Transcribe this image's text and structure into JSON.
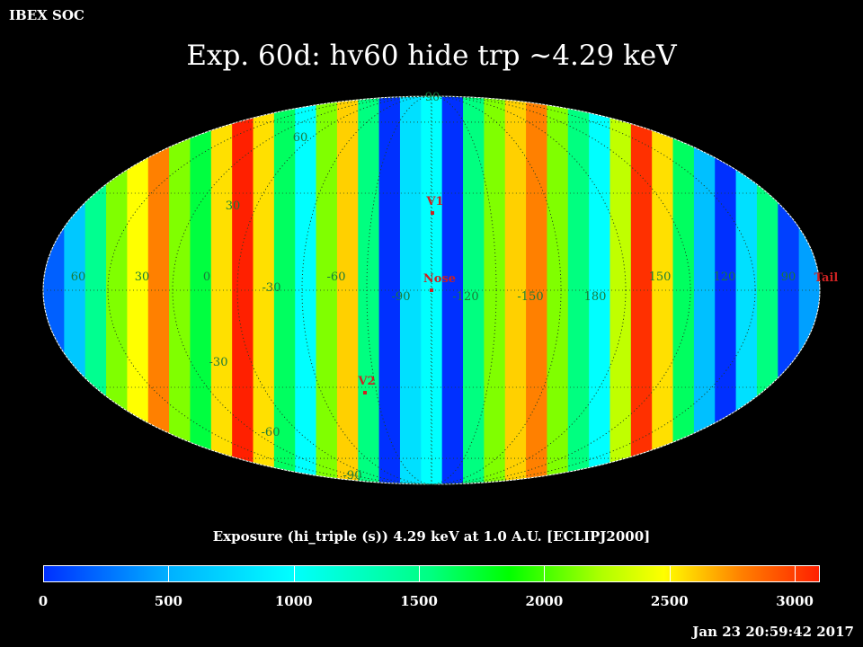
{
  "header": {
    "org": "IBEX SOC",
    "title": "Exp.   60d: hv60 hide trp ~4.29 keV"
  },
  "map": {
    "projection": "Mollweide (ecliptic J2000)",
    "lon_labels": [
      "60",
      "30",
      "0",
      "-30",
      "-60",
      "-90",
      "-120",
      "-150",
      "180",
      "150",
      "120",
      "90"
    ],
    "lat_labels": [
      "90",
      "60",
      "30",
      "-30",
      "-60",
      "-90"
    ],
    "markers": [
      {
        "label": "V1",
        "color": "#cc2222"
      },
      {
        "label": "Nose",
        "color": "#cc2222"
      },
      {
        "label": "V2",
        "color": "#cc2222"
      },
      {
        "label": "Tail",
        "color": "#cc2222"
      }
    ],
    "label_color": "#1a7a3a"
  },
  "caption": "Exposure (hi_triple (s))  4.29 keV at 1.0 A.U. [ECLIPJ2000]",
  "colorbar": {
    "min": 0,
    "max": 3100,
    "tick_labels": [
      "0",
      "500",
      "1000",
      "1500",
      "2000",
      "2500",
      "3000"
    ]
  },
  "timestamp": "Jan 23 20:59:42 2017"
}
